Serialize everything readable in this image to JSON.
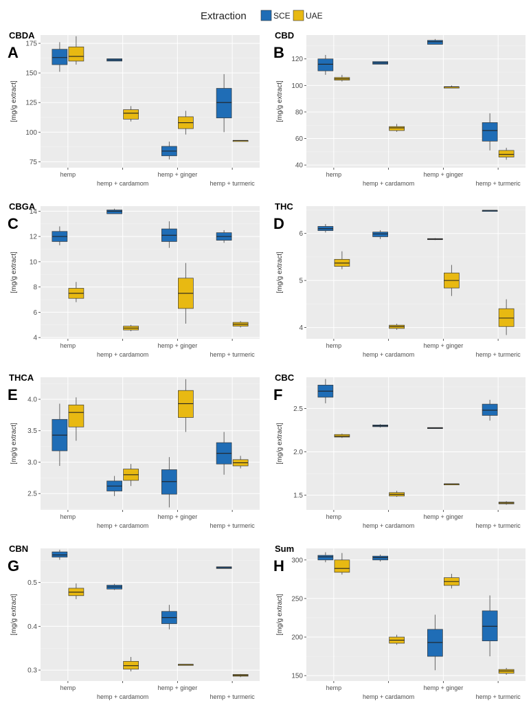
{
  "legend": {
    "title": "Extraction",
    "items": [
      {
        "label": "SCE",
        "color": "#1f6db6"
      },
      {
        "label": "UAE",
        "color": "#e8b912"
      }
    ]
  },
  "chart_data": [
    {
      "type": "boxplot",
      "title": "CBDA",
      "panel": "A",
      "ylabel": "[mg/g extract]",
      "categories": [
        "hemp",
        "hemp + cardamom",
        "hemp + ginger",
        "hemp + turmeric"
      ],
      "ylim": [
        70,
        182
      ],
      "yticks": [
        75,
        100,
        125,
        150,
        175
      ],
      "series": [
        {
          "name": "SCE",
          "boxes": [
            {
              "min": 151,
              "q1": 157,
              "median": 163,
              "q3": 170,
              "max": 176
            },
            {
              "min": 160,
              "q1": 160,
              "median": 161,
              "q3": 162,
              "max": 162
            },
            {
              "min": 77,
              "q1": 80,
              "median": 84,
              "q3": 88,
              "max": 92
            },
            {
              "min": 100,
              "q1": 112,
              "median": 125,
              "q3": 137,
              "max": 149
            }
          ]
        },
        {
          "name": "UAE",
          "boxes": [
            {
              "min": 157,
              "q1": 160,
              "median": 164,
              "q3": 172,
              "max": 181
            },
            {
              "min": 109,
              "q1": 111,
              "median": 116,
              "q3": 119,
              "max": 122
            },
            {
              "min": 98,
              "q1": 103,
              "median": 108,
              "q3": 113,
              "max": 118
            },
            {
              "min": 93,
              "q1": 93,
              "median": 93,
              "q3": 93,
              "max": 93
            }
          ]
        }
      ]
    },
    {
      "type": "boxplot",
      "title": "CBD",
      "panel": "B",
      "ylabel": "[mg/g extract]",
      "categories": [
        "hemp",
        "hemp + cardamom",
        "hemp + ginger",
        "hemp + turmeric"
      ],
      "ylim": [
        38,
        138
      ],
      "yticks": [
        40,
        60,
        80,
        100,
        120
      ],
      "series": [
        {
          "name": "SCE",
          "boxes": [
            {
              "min": 108,
              "q1": 111,
              "median": 116,
              "q3": 120,
              "max": 123
            },
            {
              "min": 116,
              "q1": 116,
              "median": 117,
              "q3": 118,
              "max": 118
            },
            {
              "min": 131,
              "q1": 131,
              "median": 133,
              "q3": 134,
              "max": 135
            },
            {
              "min": 51,
              "q1": 58,
              "median": 66,
              "q3": 72,
              "max": 79
            }
          ]
        },
        {
          "name": "UAE",
          "boxes": [
            {
              "min": 103,
              "q1": 104,
              "median": 105,
              "q3": 106,
              "max": 108
            },
            {
              "min": 65,
              "q1": 66,
              "median": 68,
              "q3": 69,
              "max": 71
            },
            {
              "min": 98,
              "q1": 98,
              "median": 99,
              "q3": 99,
              "max": 100
            },
            {
              "min": 44,
              "q1": 46,
              "median": 48,
              "q3": 51,
              "max": 53
            }
          ]
        }
      ]
    },
    {
      "type": "boxplot",
      "title": "CBGA",
      "panel": "C",
      "ylabel": "[mg/g extract]",
      "categories": [
        "hemp",
        "hemp + cardamom",
        "hemp + ginger",
        "hemp + turmeric"
      ],
      "ylim": [
        3.9,
        14.4
      ],
      "yticks": [
        4,
        6,
        8,
        10,
        12,
        14
      ],
      "series": [
        {
          "name": "SCE",
          "boxes": [
            {
              "min": 11.3,
              "q1": 11.6,
              "median": 12.0,
              "q3": 12.4,
              "max": 12.8
            },
            {
              "min": 13.8,
              "q1": 13.8,
              "median": 14.0,
              "q3": 14.1,
              "max": 14.2
            },
            {
              "min": 11.1,
              "q1": 11.6,
              "median": 12.1,
              "q3": 12.6,
              "max": 13.2
            },
            {
              "min": 11.5,
              "q1": 11.7,
              "median": 12.0,
              "q3": 12.3,
              "max": 12.5
            }
          ]
        },
        {
          "name": "UAE",
          "boxes": [
            {
              "min": 6.8,
              "q1": 7.1,
              "median": 7.5,
              "q3": 7.9,
              "max": 8.4
            },
            {
              "min": 4.5,
              "q1": 4.6,
              "median": 4.75,
              "q3": 4.9,
              "max": 5.0
            },
            {
              "min": 5.1,
              "q1": 6.3,
              "median": 7.5,
              "q3": 8.7,
              "max": 9.9
            },
            {
              "min": 4.8,
              "q1": 4.9,
              "median": 5.05,
              "q3": 5.2,
              "max": 5.3
            }
          ]
        }
      ]
    },
    {
      "type": "boxplot",
      "title": "THC",
      "panel": "D",
      "ylabel": "[mg/g extract]",
      "categories": [
        "hemp",
        "hemp + cardamom",
        "hemp + ginger",
        "hemp + turmeric"
      ],
      "ylim": [
        3.76,
        6.58
      ],
      "yticks": [
        4,
        5,
        6
      ],
      "series": [
        {
          "name": "SCE",
          "boxes": [
            {
              "min": 6.02,
              "q1": 6.06,
              "median": 6.1,
              "q3": 6.15,
              "max": 6.2
            },
            {
              "min": 5.88,
              "q1": 5.93,
              "median": 5.99,
              "q3": 6.03,
              "max": 6.07
            },
            {
              "min": 5.86,
              "q1": 5.87,
              "median": 5.88,
              "q3": 5.89,
              "max": 5.9
            },
            {
              "min": 6.49,
              "q1": 6.49,
              "median": 6.49,
              "q3": 6.49,
              "max": 6.49
            }
          ]
        },
        {
          "name": "UAE",
          "boxes": [
            {
              "min": 5.24,
              "q1": 5.3,
              "median": 5.37,
              "q3": 5.45,
              "max": 5.62
            },
            {
              "min": 3.95,
              "q1": 3.98,
              "median": 4.02,
              "q3": 4.05,
              "max": 4.08
            },
            {
              "min": 4.67,
              "q1": 4.84,
              "median": 5.0,
              "q3": 5.16,
              "max": 5.33
            },
            {
              "min": 3.84,
              "q1": 4.02,
              "median": 4.2,
              "q3": 4.4,
              "max": 4.6
            }
          ]
        }
      ]
    },
    {
      "type": "boxplot",
      "title": "THCA",
      "panel": "E",
      "ylabel": "[mg/g extract]",
      "categories": [
        "hemp",
        "hemp + cardamom",
        "hemp + ginger",
        "hemp + turmeric"
      ],
      "ylim": [
        2.24,
        4.35
      ],
      "yticks": [
        2.5,
        3.0,
        3.5,
        4.0
      ],
      "series": [
        {
          "name": "SCE",
          "boxes": [
            {
              "min": 2.94,
              "q1": 3.18,
              "median": 3.43,
              "q3": 3.68,
              "max": 3.93
            },
            {
              "min": 2.46,
              "q1": 2.54,
              "median": 2.62,
              "q3": 2.7,
              "max": 2.78
            },
            {
              "min": 2.28,
              "q1": 2.49,
              "median": 2.69,
              "q3": 2.88,
              "max": 3.08
            },
            {
              "min": 2.8,
              "q1": 2.97,
              "median": 3.14,
              "q3": 3.31,
              "max": 3.48
            }
          ]
        },
        {
          "name": "UAE",
          "boxes": [
            {
              "min": 3.34,
              "q1": 3.56,
              "median": 3.79,
              "q3": 3.91,
              "max": 4.03
            },
            {
              "min": 2.62,
              "q1": 2.71,
              "median": 2.8,
              "q3": 2.89,
              "max": 2.97
            },
            {
              "min": 3.48,
              "q1": 3.71,
              "median": 3.93,
              "q3": 4.14,
              "max": 4.32
            },
            {
              "min": 2.9,
              "q1": 2.94,
              "median": 2.99,
              "q3": 3.04,
              "max": 3.1
            }
          ]
        }
      ]
    },
    {
      "type": "boxplot",
      "title": "CBC",
      "panel": "F",
      "ylabel": "[mg/g extract]",
      "categories": [
        "hemp",
        "hemp + cardamom",
        "hemp + ginger",
        "hemp + turmeric"
      ],
      "ylim": [
        1.33,
        2.86
      ],
      "yticks": [
        1.5,
        2.0,
        2.5
      ],
      "series": [
        {
          "name": "SCE",
          "boxes": [
            {
              "min": 2.56,
              "q1": 2.63,
              "median": 2.7,
              "q3": 2.77,
              "max": 2.84
            },
            {
              "min": 2.28,
              "q1": 2.29,
              "median": 2.3,
              "q3": 2.31,
              "max": 2.32
            },
            {
              "min": 2.27,
              "q1": 2.27,
              "median": 2.275,
              "q3": 2.28,
              "max": 2.28
            },
            {
              "min": 2.36,
              "q1": 2.42,
              "median": 2.48,
              "q3": 2.55,
              "max": 2.6
            }
          ]
        },
        {
          "name": "UAE",
          "boxes": [
            {
              "min": 2.16,
              "q1": 2.17,
              "median": 2.18,
              "q3": 2.2,
              "max": 2.21
            },
            {
              "min": 1.48,
              "q1": 1.49,
              "median": 1.51,
              "q3": 1.53,
              "max": 1.55
            },
            {
              "min": 1.63,
              "q1": 1.63,
              "median": 1.63,
              "q3": 1.63,
              "max": 1.63
            },
            {
              "min": 1.39,
              "q1": 1.4,
              "median": 1.41,
              "q3": 1.42,
              "max": 1.43
            }
          ]
        }
      ]
    },
    {
      "type": "boxplot",
      "title": "CBN",
      "panel": "G",
      "ylabel": "[mg/g extract]",
      "categories": [
        "hemp",
        "hemp + cardamom",
        "hemp + ginger",
        "hemp + turmeric"
      ],
      "ylim": [
        0.275,
        0.578
      ],
      "yticks": [
        0.3,
        0.4,
        0.5
      ],
      "series": [
        {
          "name": "SCE",
          "boxes": [
            {
              "min": 0.552,
              "q1": 0.558,
              "median": 0.563,
              "q3": 0.57,
              "max": 0.575
            },
            {
              "min": 0.483,
              "q1": 0.485,
              "median": 0.49,
              "q3": 0.494,
              "max": 0.497
            },
            {
              "min": 0.393,
              "q1": 0.406,
              "median": 0.42,
              "q3": 0.434,
              "max": 0.449
            },
            {
              "min": 0.532,
              "q1": 0.532,
              "median": 0.534,
              "q3": 0.536,
              "max": 0.536
            }
          ]
        },
        {
          "name": "UAE",
          "boxes": [
            {
              "min": 0.462,
              "q1": 0.47,
              "median": 0.478,
              "q3": 0.487,
              "max": 0.498
            },
            {
              "min": 0.297,
              "q1": 0.302,
              "median": 0.31,
              "q3": 0.32,
              "max": 0.33
            },
            {
              "min": 0.313,
              "q1": 0.313,
              "median": 0.313,
              "q3": 0.313,
              "max": 0.313
            },
            {
              "min": 0.284,
              "q1": 0.286,
              "median": 0.288,
              "q3": 0.29,
              "max": 0.291
            }
          ]
        }
      ]
    },
    {
      "type": "boxplot",
      "title": "Sum",
      "panel": "H",
      "ylabel": "[mg/g extract]",
      "categories": [
        "hemp",
        "hemp + cardamom",
        "hemp + ginger",
        "hemp + turmeric"
      ],
      "ylim": [
        143,
        315
      ],
      "yticks": [
        150,
        200,
        250,
        300
      ],
      "series": [
        {
          "name": "SCE",
          "boxes": [
            {
              "min": 297,
              "q1": 300,
              "median": 304,
              "q3": 306,
              "max": 310
            },
            {
              "min": 298,
              "q1": 300,
              "median": 303,
              "q3": 305,
              "max": 307
            },
            {
              "min": 157,
              "q1": 175,
              "median": 193,
              "q3": 210,
              "max": 229
            },
            {
              "min": 175,
              "q1": 195,
              "median": 214,
              "q3": 234,
              "max": 254
            }
          ]
        },
        {
          "name": "UAE",
          "boxes": [
            {
              "min": 281,
              "q1": 284,
              "median": 289,
              "q3": 300,
              "max": 309
            },
            {
              "min": 190,
              "q1": 192,
              "median": 196,
              "q3": 200,
              "max": 203
            },
            {
              "min": 263,
              "q1": 267,
              "median": 272,
              "q3": 277,
              "max": 282
            },
            {
              "min": 151,
              "q1": 153,
              "median": 156,
              "q3": 158,
              "max": 160
            }
          ]
        }
      ]
    }
  ]
}
